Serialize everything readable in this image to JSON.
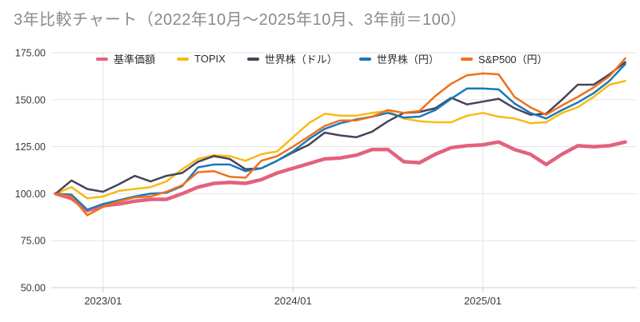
{
  "title": "3年比較チャート（2022年10月〜2025年10月、3年前＝100）",
  "colors": {
    "title_text": "#8a8a8a",
    "axis_text": "#3a3a3a",
    "gridline": "#e3e3e3",
    "axis_line": "#cfcfcf",
    "background": "#ffffff"
  },
  "chart_data": {
    "type": "line",
    "title": "3年比較チャート（2022年10月〜2025年10月、3年前＝100）",
    "xlabel": "",
    "ylabel": "",
    "ylim": [
      50,
      175
    ],
    "grid": true,
    "legend_position": "top",
    "yticks": [
      {
        "value": 175,
        "label": "175.00"
      },
      {
        "value": 150,
        "label": "150.00"
      },
      {
        "value": 125,
        "label": "125.00"
      },
      {
        "value": 100,
        "label": "100.00"
      },
      {
        "value": 75,
        "label": "75.00"
      },
      {
        "value": 50,
        "label": "50.00"
      }
    ],
    "x": [
      "2022/10",
      "2022/11",
      "2022/12",
      "2023/01",
      "2023/02",
      "2023/03",
      "2023/04",
      "2023/05",
      "2023/06",
      "2023/07",
      "2023/08",
      "2023/09",
      "2023/10",
      "2023/11",
      "2023/12",
      "2024/01",
      "2024/02",
      "2024/03",
      "2024/04",
      "2024/05",
      "2024/06",
      "2024/07",
      "2024/08",
      "2024/09",
      "2024/10",
      "2024/11",
      "2024/12",
      "2025/01",
      "2025/02",
      "2025/03",
      "2025/04",
      "2025/05",
      "2025/06",
      "2025/07",
      "2025/08",
      "2025/09",
      "2025/10"
    ],
    "visible_x_ticks": [
      {
        "index": 3,
        "label": "2023/01"
      },
      {
        "index": 15,
        "label": "2024/01"
      },
      {
        "index": 27,
        "label": "2025/01"
      }
    ],
    "series": [
      {
        "name": "基準価額",
        "color": "#e4617d",
        "line_width": 4.5,
        "values": [
          100,
          97.5,
          91,
          93.5,
          94.5,
          96,
          97,
          97,
          100,
          103.5,
          105.5,
          106,
          105.5,
          107.5,
          111,
          113.5,
          116,
          118.5,
          119,
          120.5,
          123.5,
          123.5,
          117,
          116.5,
          121,
          124.5,
          125.5,
          126,
          127.5,
          123.5,
          121,
          115.5,
          121,
          125.5,
          125,
          125.5,
          127.5
        ]
      },
      {
        "name": "TOPIX",
        "color": "#f8ba15",
        "line_width": 2.5,
        "values": [
          100,
          103.5,
          97.5,
          98.5,
          101.5,
          102.5,
          103.5,
          106.5,
          113,
          118.5,
          120.5,
          120,
          117.5,
          121,
          122.5,
          130,
          137.5,
          142.5,
          141.5,
          141.5,
          143,
          144,
          140,
          138.5,
          138,
          138,
          141.5,
          143,
          141,
          140,
          137.5,
          138,
          143,
          146,
          151.5,
          158,
          160
        ]
      },
      {
        "name": "世界株（ドル）",
        "color": "#474459",
        "line_width": 2.5,
        "values": [
          100,
          107,
          102.5,
          101,
          105,
          109.5,
          106.5,
          109.5,
          111,
          117,
          120,
          118.5,
          113,
          113.5,
          117.5,
          122,
          126,
          132.5,
          131,
          130,
          133,
          138.5,
          143,
          143.5,
          145.5,
          151,
          147.5,
          149,
          150.5,
          145.5,
          142,
          142.5,
          150,
          158,
          158,
          163.5,
          170
        ]
      },
      {
        "name": "世界株（円）",
        "color": "#1b79b8",
        "line_width": 2.5,
        "values": [
          100,
          99.5,
          91.5,
          94.5,
          96.5,
          98.5,
          100,
          100.5,
          104,
          114,
          115.5,
          115.5,
          112,
          113.5,
          117.5,
          122.5,
          129,
          134.5,
          137.5,
          139.5,
          141,
          143,
          140.5,
          141,
          144.5,
          150.5,
          156,
          156,
          155.5,
          148,
          143,
          140,
          144.5,
          148.5,
          153.5,
          160,
          169
        ]
      },
      {
        "name": "S&P500（円）",
        "color": "#f07019",
        "line_width": 2.5,
        "values": [
          100,
          98.5,
          88.5,
          93,
          96,
          98,
          98.5,
          101,
          104.5,
          111.5,
          112,
          109,
          108.5,
          117.5,
          120,
          125,
          130.5,
          136,
          139,
          139,
          141,
          144.5,
          143,
          144,
          152,
          158.5,
          163,
          164,
          163.5,
          151.5,
          146,
          142,
          147,
          151.5,
          156.5,
          162.5,
          172
        ]
      }
    ]
  }
}
